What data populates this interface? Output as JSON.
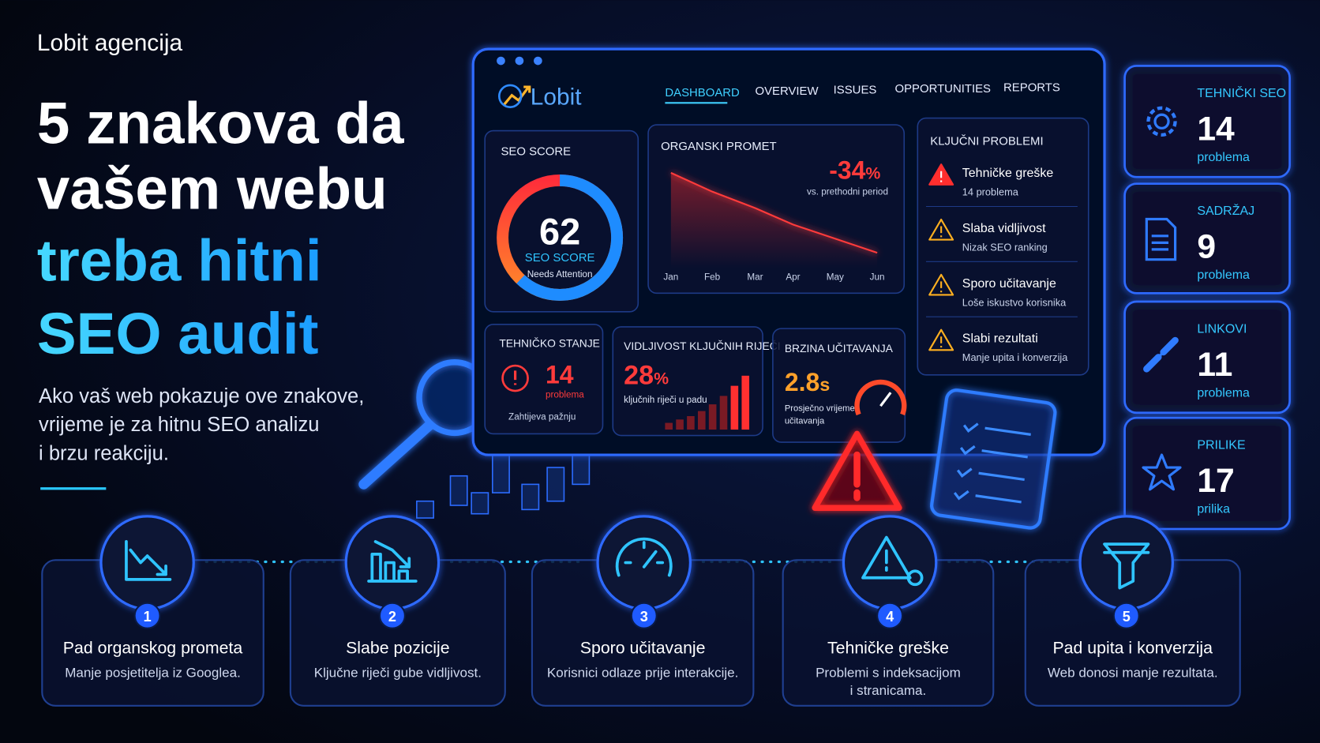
{
  "header": {
    "brand": "Lobit agencija",
    "title": [
      "5 znakova da",
      "vašem webu",
      "treba hitni",
      "SEO audit"
    ],
    "subtitle": [
      "Ako vaš web pokazuje ove znakove,",
      "vrijeme je za hitnu SEO analizu",
      "i brzu reakciju."
    ]
  },
  "dashboard": {
    "brand": "Lobit",
    "nav": [
      "DASHBOARD",
      "OVERVIEW",
      "ISSUES",
      "OPPORTUNITIES",
      "REPORTS"
    ],
    "seo_score": {
      "title": "SEO SCORE",
      "value": 62,
      "label": "SEO SCORE",
      "status": "Needs Attention"
    },
    "traffic": {
      "title": "ORGANSKI PROMET",
      "change": -34,
      "unit": "%",
      "note": "vs. prethodni period",
      "categories": [
        "Jan",
        "Feb",
        "Mar",
        "Apr",
        "May",
        "Jun"
      ],
      "values": [
        100,
        92,
        85,
        78,
        72,
        66
      ]
    },
    "technical": {
      "title": "TEHNIČKO STANJE",
      "value": 14,
      "unit": "problema",
      "note": "Zahtijeva pažnju"
    },
    "visibility": {
      "title": "VIDLJIVOST KLJUČNIH RIJEČI",
      "value": 28,
      "unit": "%",
      "note": "ključnih riječi u padu"
    },
    "speed": {
      "title": "BRZINA UČITAVANJA",
      "value": 2.8,
      "unit": "s",
      "note": [
        "Prosječno vrijeme",
        "učitavanja"
      ]
    },
    "problems": {
      "title": "KLJUČNI PROBLEMI",
      "items": [
        {
          "title": "Tehničke greške",
          "detail": "14 problema"
        },
        {
          "title": "Slaba vidljivost",
          "detail": "Nizak SEO ranking"
        },
        {
          "title": "Sporo učitavanje",
          "detail": "Loše iskustvo korisnika"
        },
        {
          "title": "Slabi rezultati",
          "detail": "Manje upita i konverzija"
        }
      ]
    }
  },
  "side_stats": [
    {
      "label": "TEHNIČKI SEO",
      "value": 14,
      "unit": "problema"
    },
    {
      "label": "SADRŽAJ",
      "value": 9,
      "unit": "problema"
    },
    {
      "label": "LINKOVI",
      "value": 11,
      "unit": "problema"
    },
    {
      "label": "PRILIKE",
      "value": 17,
      "unit": "prilika"
    }
  ],
  "steps": [
    {
      "number": 1,
      "title": "Pad organskog prometa",
      "description": [
        "Manje posjetitelja iz Googlea."
      ]
    },
    {
      "number": 2,
      "title": "Slabe pozicije",
      "description": [
        "Ključne riječi gube vidljivost."
      ]
    },
    {
      "number": 3,
      "title": "Sporo učitavanje",
      "description": [
        "Korisnici odlaze prije interakcije."
      ]
    },
    {
      "number": 4,
      "title": "Tehničke greške",
      "description": [
        "Problemi s indeksacijom",
        "i stranicama."
      ]
    },
    {
      "number": 5,
      "title": "Pad upita i konverzija",
      "description": [
        "Web donosi manje rezultata."
      ]
    }
  ]
}
